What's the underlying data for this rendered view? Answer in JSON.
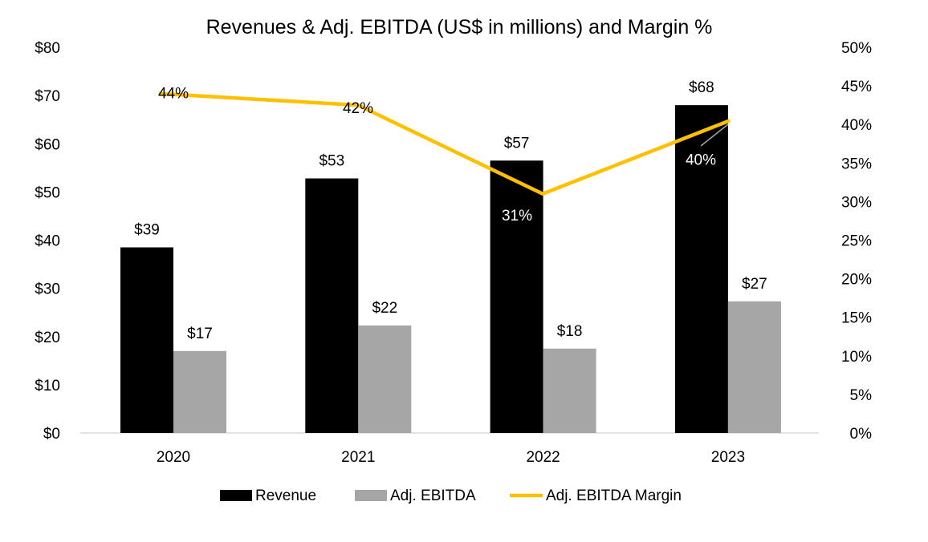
{
  "chart_data": {
    "type": "bar",
    "title": "Revenues & Adj. EBITDA (US$ in millions) and Margin %",
    "categories": [
      "2020",
      "2021",
      "2022",
      "2023"
    ],
    "series": [
      {
        "name": "Revenue",
        "type": "bar",
        "axis": "left",
        "color": "#000000",
        "values": [
          38.5,
          52.8,
          56.5,
          68
        ],
        "labels": [
          "$39",
          "$53",
          "$57",
          "$68"
        ]
      },
      {
        "name": "Adj. EBITDA",
        "type": "bar",
        "axis": "left",
        "color": "#a6a6a6",
        "values": [
          17,
          22.3,
          17.5,
          27.3
        ],
        "labels": [
          "$17",
          "$22",
          "$18",
          "$27"
        ]
      },
      {
        "name": "Adj. EBITDA Margin",
        "type": "line",
        "axis": "right",
        "color": "#ffc000",
        "values": [
          44,
          42.5,
          31,
          40.5
        ],
        "labels": [
          "44%",
          "42%",
          "31%",
          "40%"
        ]
      }
    ],
    "y_left": {
      "range": [
        0,
        80
      ],
      "ticks": [
        "$0",
        "$10",
        "$20",
        "$30",
        "$40",
        "$50",
        "$60",
        "$70",
        "$80"
      ]
    },
    "y_right": {
      "range": [
        0,
        50
      ],
      "ticks": [
        "0%",
        "5%",
        "10%",
        "15%",
        "20%",
        "25%",
        "30%",
        "35%",
        "40%",
        "45%",
        "50%"
      ]
    },
    "grid": false,
    "legend": "bottom"
  }
}
